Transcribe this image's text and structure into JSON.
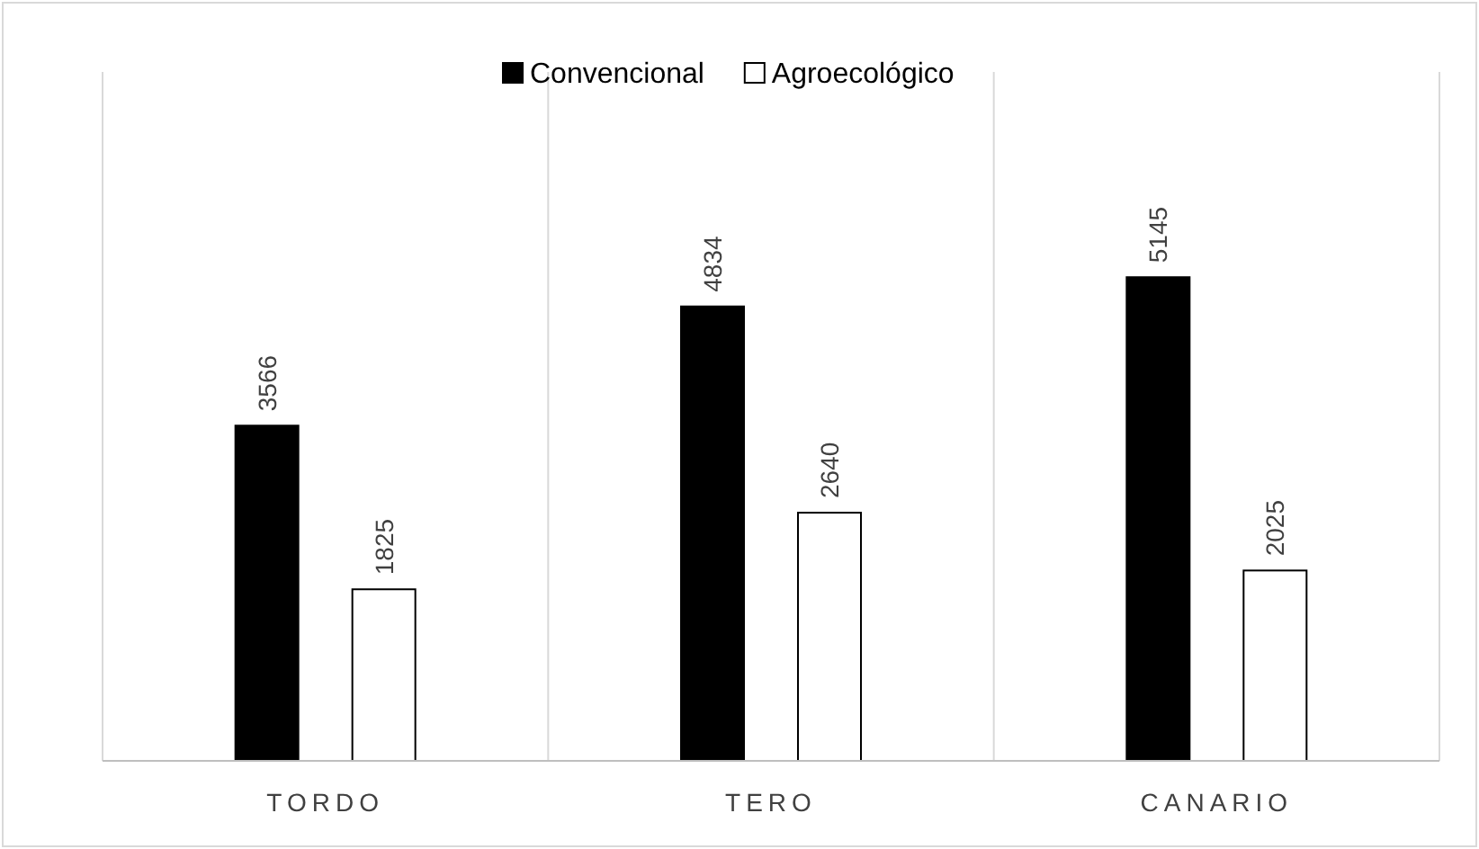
{
  "chart_data": {
    "type": "bar",
    "categories": [
      "TORDO",
      "TERO",
      "CANARIO"
    ],
    "series": [
      {
        "name": "Convencional",
        "color": "#000000",
        "values": [
          3566,
          4834,
          5145
        ]
      },
      {
        "name": "Agroecológico",
        "color": "#ffffff",
        "values": [
          1825,
          2640,
          2025
        ]
      }
    ],
    "data_labels": true,
    "grid": "x",
    "legend": "top"
  }
}
